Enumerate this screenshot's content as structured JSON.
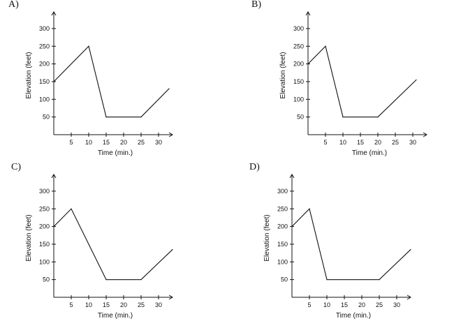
{
  "chart_data": [
    {
      "type": "line",
      "label": "A)",
      "xlabel": "Time (min.)",
      "ylabel": "Elevation (feet)",
      "x_ticks": [
        5,
        10,
        15,
        20,
        25,
        30
      ],
      "y_ticks": [
        50,
        100,
        150,
        200,
        250,
        300
      ],
      "x": [
        0,
        10,
        15,
        25,
        33
      ],
      "y": [
        150,
        250,
        50,
        50,
        130
      ]
    },
    {
      "type": "line",
      "label": "B)",
      "xlabel": "Time (min.)",
      "ylabel": "Elevation (feet)",
      "x_ticks": [
        5,
        10,
        15,
        20,
        25,
        30
      ],
      "y_ticks": [
        50,
        100,
        150,
        200,
        250,
        300
      ],
      "x": [
        0,
        5,
        10,
        20,
        31
      ],
      "y": [
        200,
        250,
        50,
        50,
        155
      ]
    },
    {
      "type": "line",
      "label": "C)",
      "xlabel": "Time (min.)",
      "ylabel": "Elevation (feet)",
      "x_ticks": [
        5,
        10,
        15,
        20,
        25,
        30
      ],
      "y_ticks": [
        50,
        100,
        150,
        200,
        250,
        300
      ],
      "x": [
        0,
        5,
        15,
        25,
        34
      ],
      "y": [
        200,
        250,
        50,
        50,
        135
      ]
    },
    {
      "type": "line",
      "label": "D)",
      "xlabel": "Time (min.)",
      "ylabel": "Elevation (feet)",
      "x_ticks": [
        5,
        10,
        15,
        20,
        25,
        30
      ],
      "y_ticks": [
        50,
        100,
        150,
        200,
        250,
        300
      ],
      "x": [
        0,
        5,
        10,
        25,
        34
      ],
      "y": [
        200,
        250,
        50,
        50,
        135
      ]
    }
  ]
}
